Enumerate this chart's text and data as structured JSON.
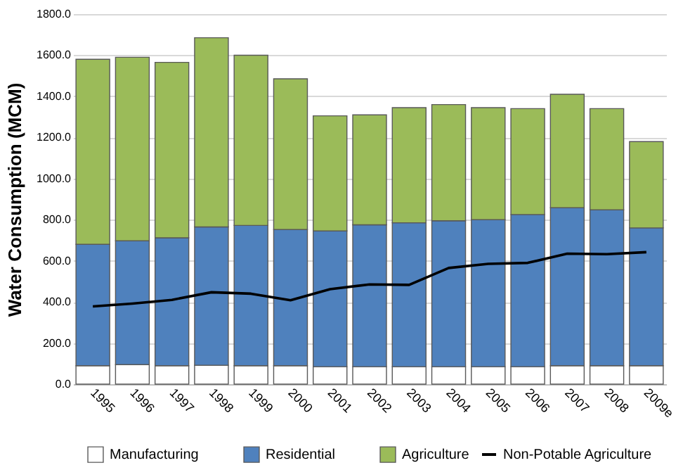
{
  "chart_data": {
    "type": "bar",
    "stacked": true,
    "ylabel": "Water Consumption (MCM)",
    "categories": [
      "1995",
      "1996",
      "1997",
      "1998",
      "1999",
      "2000",
      "2001",
      "2002",
      "2003",
      "2004",
      "2005",
      "2006",
      "2007",
      "2008",
      "2009e"
    ],
    "series": [
      {
        "name": "Manufacturing",
        "color": "#ffffff",
        "values": [
          90,
          95,
          90,
          92,
          90,
          90,
          85,
          85,
          85,
          85,
          85,
          85,
          90,
          90,
          90
        ]
      },
      {
        "name": "Residential",
        "color": "#4f81bd",
        "values": [
          590,
          602,
          622,
          673,
          682,
          662,
          660,
          690,
          700,
          710,
          715,
          740,
          768,
          758,
          670
        ]
      },
      {
        "name": "Agriculture",
        "color": "#9bbb59",
        "values": [
          900,
          893,
          853,
          920,
          828,
          733,
          560,
          535,
          560,
          565,
          545,
          515,
          552,
          492,
          420
        ]
      },
      {
        "name": "Non-Potable Agriculture",
        "type": "line",
        "color": "#000000",
        "values": [
          378,
          392,
          410,
          447,
          440,
          408,
          462,
          485,
          483,
          565,
          585,
          590,
          635,
          632,
          642
        ]
      }
    ],
    "ylim": [
      0,
      1800
    ],
    "yticks": [
      {
        "value": 0,
        "label": "0.0"
      },
      {
        "value": 200,
        "label": "200.0"
      },
      {
        "value": 400,
        "label": "400.0"
      },
      {
        "value": 600,
        "label": "600.0"
      },
      {
        "value": 800,
        "label": "800.0"
      },
      {
        "value": 1000,
        "label": "1000.0"
      },
      {
        "value": 1200,
        "label": "1200.0"
      },
      {
        "value": 1400,
        "label": "1400.0"
      },
      {
        "value": 1600,
        "label": "1600.0"
      },
      {
        "value": 1800,
        "label": "1800.0"
      }
    ],
    "grid": "y",
    "legend": "bottom"
  }
}
